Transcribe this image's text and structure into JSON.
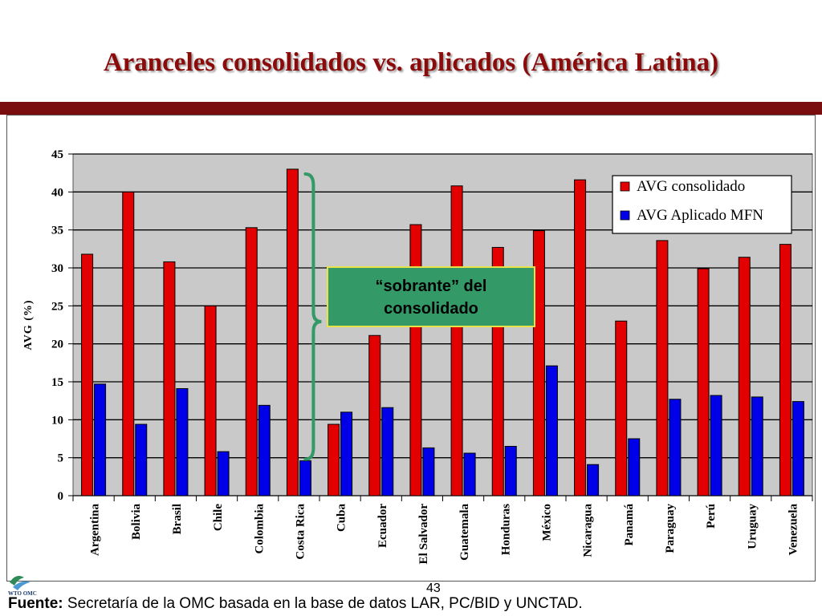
{
  "slide": {
    "title": "Aranceles consolidados vs. aplicados (América Latina)",
    "page_number": "43",
    "source_label": "Fuente:",
    "source_text": "Secretaría de la OMC basada en la base de datos LAR, PC/BID y UNCTAD.",
    "logo_text": "WTO OMC"
  },
  "colors": {
    "consolidado": "#e30000",
    "aplicado": "#0000e8",
    "title": "#8b0a0a",
    "callout_bg": "#339966",
    "brace": "#339966"
  },
  "callout": {
    "text_line1": "“sobrante” del",
    "text_line2": "consolidado"
  },
  "chart_data": {
    "type": "bar",
    "title": "",
    "xlabel": "",
    "ylabel": "AVG (%)",
    "ylim": [
      0,
      45
    ],
    "yticks": [
      0,
      5,
      10,
      15,
      20,
      25,
      30,
      35,
      40,
      45
    ],
    "grid": true,
    "legend_position": "top-right",
    "categories": [
      "Argentina",
      "Bolivia",
      "Brasil",
      "Chile",
      "Colombia",
      "Costa Rica",
      "Cuba",
      "Ecuador",
      "El Salvador",
      "Guatemala",
      "Honduras",
      "México",
      "Nicaragua",
      "Panamá",
      "Paraguay",
      "Perú",
      "Uruguay",
      "Venezuela"
    ],
    "series": [
      {
        "name": "AVG consolidado",
        "values": [
          31.8,
          40.0,
          30.8,
          25.0,
          35.3,
          43.0,
          9.4,
          21.1,
          35.7,
          40.8,
          32.7,
          34.9,
          41.6,
          23.0,
          33.6,
          29.9,
          31.4,
          33.1
        ]
      },
      {
        "name": "AVG Aplicado MFN",
        "values": [
          14.7,
          9.4,
          14.1,
          5.8,
          11.9,
          4.6,
          11.0,
          11.6,
          6.3,
          5.6,
          6.5,
          17.1,
          4.1,
          7.5,
          12.7,
          13.2,
          13.0,
          12.4
        ]
      }
    ]
  }
}
